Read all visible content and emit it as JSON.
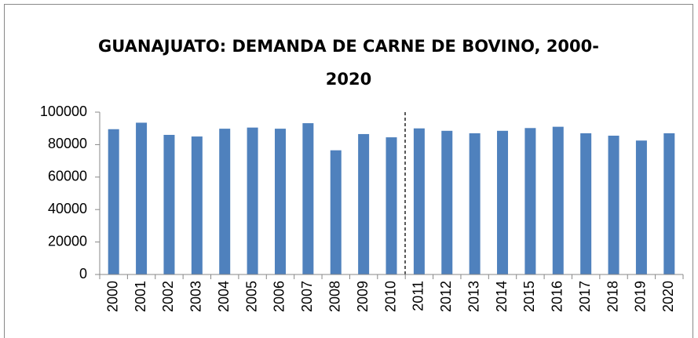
{
  "chart_data": {
    "type": "bar",
    "title": "GUANAJUATO: DEMANDA DE CARNE DE BOVINO, 2000-2020",
    "categories": [
      "2000",
      "2001",
      "2002",
      "2003",
      "2004",
      "2005",
      "2006",
      "2007",
      "2008",
      "2009",
      "2010",
      "2011",
      "2012",
      "2013",
      "2014",
      "2015",
      "2016",
      "2017",
      "2018",
      "2019",
      "2020"
    ],
    "values": [
      89500,
      93500,
      86000,
      85000,
      89800,
      90500,
      89800,
      93200,
      76500,
      86500,
      84500,
      90000,
      88500,
      87000,
      88500,
      90200,
      91000,
      87000,
      85500,
      82500,
      87000
    ],
    "color": "#4f81bd",
    "ylim": [
      0,
      100000
    ],
    "yticks": [
      0,
      20000,
      40000,
      60000,
      80000,
      100000
    ],
    "grid": false
  }
}
